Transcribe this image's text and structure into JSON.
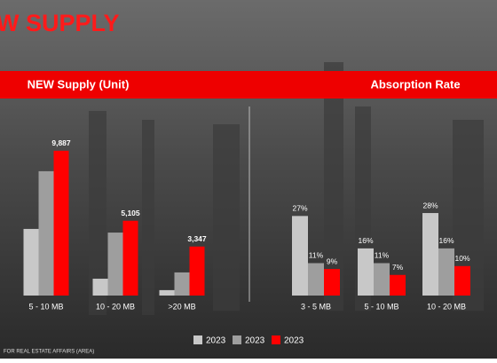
{
  "title": "W SUPPLY",
  "footnote": "FOR REAL ESTATE AFFAIRS (AREA)",
  "chart_data": [
    {
      "type": "bar",
      "title": "NEW Supply (Unit)",
      "categories": [
        "5 - 10 MB",
        "10 - 20 MB",
        ">20 MB"
      ],
      "ylim": [
        0,
        10000
      ],
      "series": [
        {
          "name": "2023",
          "color": "#c8c8c8",
          "values": [
            4550,
            1150,
            370
          ]
        },
        {
          "name": "2023",
          "color": "#9e9e9e",
          "values": [
            8490,
            4300,
            1580
          ]
        },
        {
          "name": "2023",
          "color": "#ff0000",
          "values": [
            9887,
            5105,
            3347
          ],
          "value_labels": [
            "9,887",
            "5,105",
            "3,347"
          ]
        }
      ]
    },
    {
      "type": "bar",
      "title": "Absorption Rate",
      "categories": [
        "3 - 5 MB",
        "5 - 10 MB",
        "10 - 20 MB"
      ],
      "ylim": [
        0,
        50
      ],
      "series": [
        {
          "name": "2023",
          "color": "#c8c8c8",
          "values": [
            27,
            16,
            28
          ],
          "value_labels": [
            "27%",
            "16%",
            "28%"
          ]
        },
        {
          "name": "2023",
          "color": "#9e9e9e",
          "values": [
            11,
            11,
            16
          ],
          "value_labels": [
            "11%",
            "11%",
            "16%"
          ]
        },
        {
          "name": "2023",
          "color": "#ff0000",
          "values": [
            9,
            7,
            10
          ],
          "value_labels": [
            "9%",
            "7%",
            "10%"
          ]
        }
      ]
    }
  ]
}
